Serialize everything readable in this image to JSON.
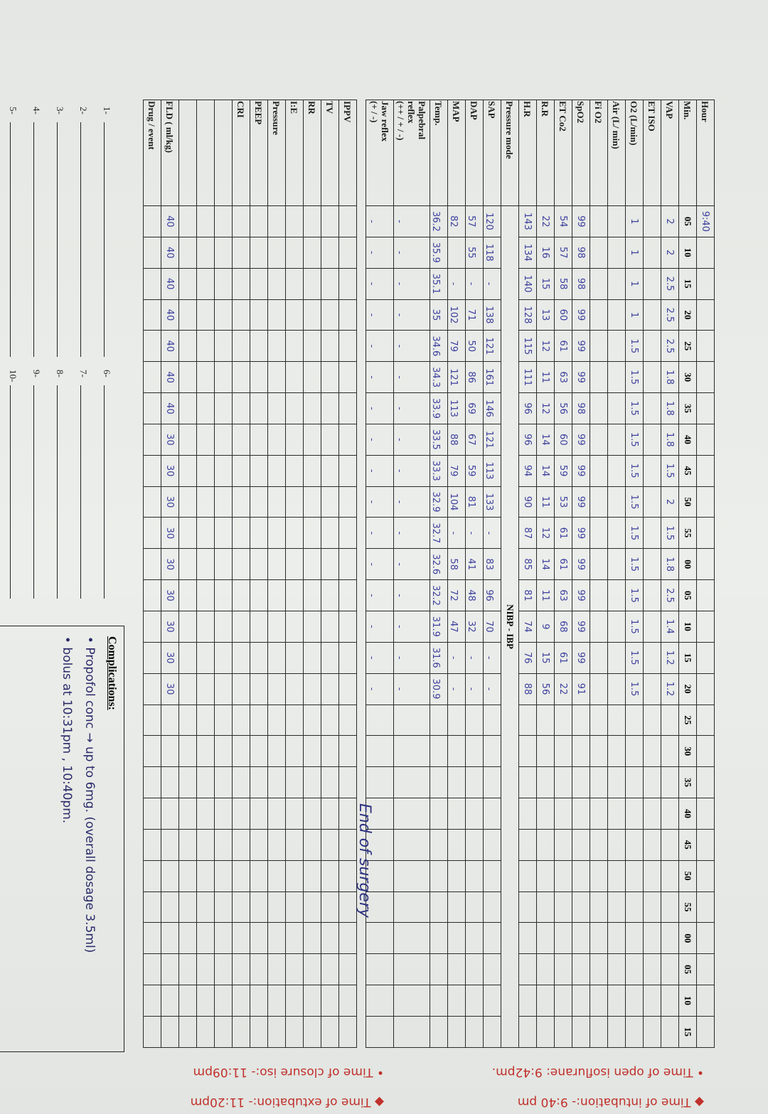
{
  "table": {
    "minutes": [
      "05",
      "10",
      "15",
      "20",
      "25",
      "30",
      "35",
      "40",
      "45",
      "50",
      "55",
      "00",
      "05",
      "10",
      "15",
      "20",
      "25",
      "30",
      "35",
      "40",
      "45",
      "50",
      "55",
      "00",
      "05",
      "10",
      "15"
    ],
    "hour_label": "Hour",
    "hour_values": [
      "9:40"
    ],
    "min_label": "Min.",
    "pressure_mode_label": "Pressure mode",
    "pressure_mode_value": "NIBP - IBP",
    "rows_top": [
      {
        "label": "VAP",
        "values": [
          "2",
          "2",
          "2.5",
          "2.5",
          "2.5",
          "1.8",
          "1.8",
          "1.8",
          "1.5",
          "2",
          "1.5",
          "1.8",
          "2.5",
          "1.4",
          "1.2",
          "1.2"
        ]
      },
      {
        "label": "ET ISO",
        "values": []
      },
      {
        "label": "O2 (L/min)",
        "values": [
          "1",
          "1",
          "1",
          "1",
          "1.5",
          "1.5",
          "1.5",
          "1.5",
          "1.5",
          "1.5",
          "1.5",
          "1.5",
          "1.5",
          "1.5",
          "1.5",
          "1.5"
        ]
      },
      {
        "label": "Air (L/ min)",
        "values": []
      },
      {
        "label": "Fi O2",
        "values": []
      },
      {
        "label": "SpO2",
        "values": [
          "99",
          "98",
          "98",
          "99",
          "99",
          "99",
          "98",
          "99",
          "99",
          "99",
          "99",
          "99",
          "99",
          "99",
          "99",
          "91"
        ]
      },
      {
        "label": "ET Co2",
        "values": [
          "54",
          "57",
          "58",
          "60",
          "61",
          "63",
          "56",
          "60",
          "59",
          "53",
          "61",
          "61",
          "63",
          "68",
          "61",
          "22"
        ]
      },
      {
        "label": "R.R",
        "values": [
          "22",
          "16",
          "15",
          "13",
          "12",
          "11",
          "12",
          "14",
          "14",
          "11",
          "12",
          "14",
          "11",
          "9",
          "15",
          "56"
        ]
      },
      {
        "label": "H.R",
        "values": [
          "143",
          "134",
          "140",
          "128",
          "115",
          "111",
          "96",
          "96",
          "94",
          "90",
          "87",
          "85",
          "81",
          "74",
          "76",
          "88"
        ]
      }
    ],
    "rows_bp": [
      {
        "label": "SAP",
        "values": [
          "120",
          "118",
          "-",
          "138",
          "121",
          "161",
          "146",
          "121",
          "113",
          "133",
          "-",
          "83",
          "96",
          "70",
          "-",
          "-"
        ]
      },
      {
        "label": "DAP",
        "values": [
          "57",
          "55",
          "-",
          "71",
          "50",
          "86",
          "69",
          "67",
          "59",
          "81",
          "-",
          "41",
          "48",
          "32",
          "-",
          "-"
        ]
      },
      {
        "label": "MAP",
        "values": [
          "82",
          "",
          "-",
          "102",
          "79",
          "121",
          "113",
          "88",
          "79",
          "104",
          "-",
          "58",
          "72",
          "47",
          "-",
          "-"
        ]
      },
      {
        "label": "Temp.",
        "values": [
          "36.2",
          "35.9",
          "35.1",
          "35",
          "34.6",
          "34.3",
          "33.9",
          "33.5",
          "33.3",
          "32.9",
          "32.7",
          "32.6",
          "32.2",
          "31.9",
          "31.6",
          "30.9"
        ]
      },
      {
        "label": "Palpebral\nreflex\n(++ / + / -)",
        "values": [
          "-",
          "-",
          "-",
          "-",
          "-",
          "-",
          "-",
          "-",
          "-",
          "-",
          "-",
          "-",
          "-",
          "-",
          "-",
          "-"
        ]
      },
      {
        "label": "Jaw reflex\n(+ / -)",
        "values": [
          "-",
          "-",
          "-",
          "-",
          "-",
          "-",
          "-",
          "-",
          "-",
          "-",
          "-",
          "-",
          "-",
          "-",
          "-",
          "-"
        ]
      }
    ],
    "rows_vent": [
      {
        "label": "IPPV",
        "values": []
      },
      {
        "label": "TV",
        "values": []
      },
      {
        "label": "RR",
        "values": []
      },
      {
        "label": "I:E",
        "values": []
      },
      {
        "label": "Pressure",
        "values": []
      },
      {
        "label": "PEEP",
        "values": []
      },
      {
        "label": "CRI",
        "values": []
      },
      {
        "label": "",
        "values": []
      },
      {
        "label": "",
        "values": []
      },
      {
        "label": "",
        "values": []
      },
      {
        "label": "FLD ( ml/kg)",
        "values": [
          "40",
          "40",
          "40",
          "40",
          "40",
          "40",
          "40",
          "30",
          "30",
          "30",
          "30",
          "30",
          "30",
          "30",
          "30",
          "30"
        ]
      },
      {
        "label": "Drug / event",
        "values": []
      }
    ]
  },
  "annotation": "End of surgery",
  "drug_list": [
    "1-",
    "2-",
    "3-",
    "4-",
    "5-",
    "6-",
    "7-",
    "8-",
    "9-",
    "10-"
  ],
  "complications": {
    "title": "Complications:",
    "notes": [
      "• Propofol conc → up to 6mg. (overall dosage 3.5ml)",
      "• bolus at 10:31pm , 10:40pm."
    ]
  },
  "time_notes": [
    "◆ Time of intubation:- 9:40 pm",
    "• Time of open isoflurane: 9:42pm.",
    "◆ Time of extubation:- 11:20pm",
    "• Time of closure iso:- 11:09pm"
  ],
  "colors": {
    "ink_blue": "#3c3f9c",
    "ink_red": "#c0302c",
    "grid": "#2a2a2a"
  }
}
